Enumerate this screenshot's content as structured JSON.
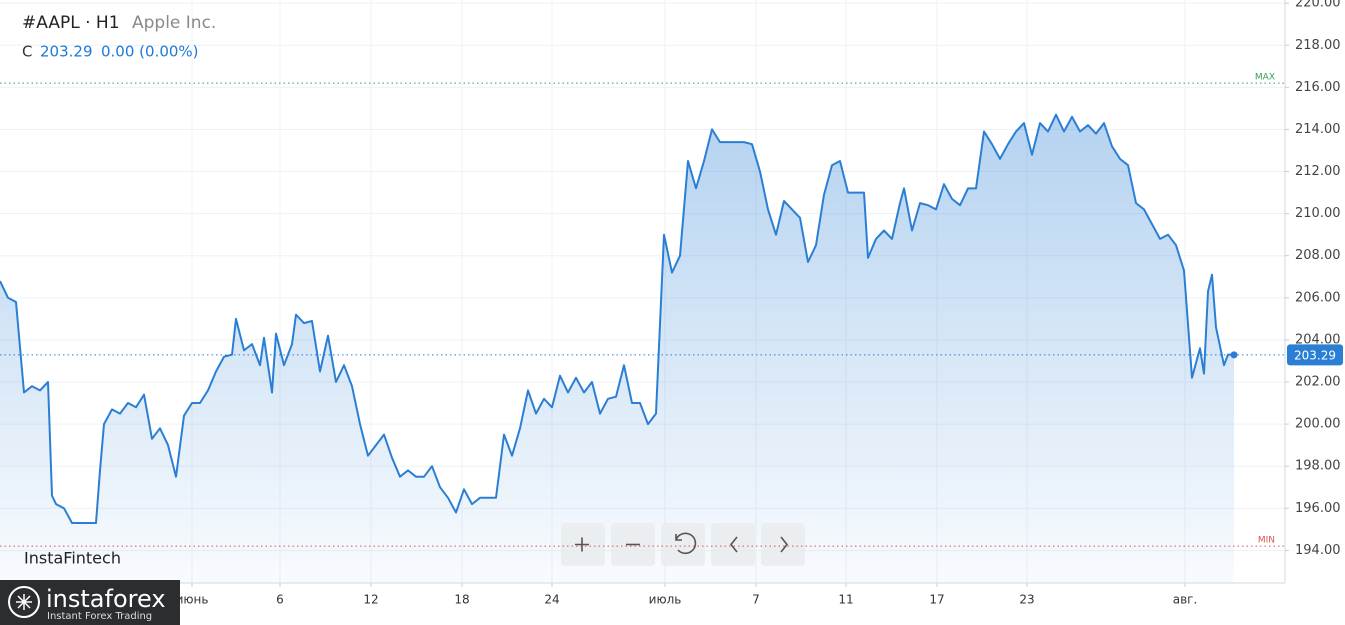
{
  "chart_data": {
    "type": "line",
    "title": "#AAPL · H1",
    "subtitle": "Apple Inc.",
    "price_prefix": "C",
    "close_value": 203.29,
    "change_text": "0.00 (0.00%)",
    "watermark": "InstaFintech",
    "brand": "instaforex",
    "brand_tagline": "Instant Forex Trading",
    "max_line": {
      "value": 216.2,
      "label": "MAX"
    },
    "min_line": {
      "value": 194.2,
      "label": "MIN"
    },
    "last_price": 203.29,
    "grid": true,
    "xlim": [
      0,
      1285
    ],
    "ylim": [
      192.45,
      220.15
    ],
    "yticks": [
      {
        "value": 194,
        "label": "194.00"
      },
      {
        "value": 196,
        "label": "196.00"
      },
      {
        "value": 198,
        "label": "198.00"
      },
      {
        "value": 200,
        "label": "200.00"
      },
      {
        "value": 202,
        "label": "202.00"
      },
      {
        "value": 204,
        "label": "204.00"
      },
      {
        "value": 206,
        "label": "206.00"
      },
      {
        "value": 208,
        "label": "208.00"
      },
      {
        "value": 210,
        "label": "210.00"
      },
      {
        "value": 212,
        "label": "212.00"
      },
      {
        "value": 214,
        "label": "214.00"
      },
      {
        "value": 216,
        "label": "216.00"
      },
      {
        "value": 218,
        "label": "218.00"
      },
      {
        "value": 220,
        "label": "220.00"
      }
    ],
    "xticks": [
      {
        "value": 192,
        "label": "июнь"
      },
      {
        "value": 280,
        "label": "6"
      },
      {
        "value": 371,
        "label": "12"
      },
      {
        "value": 462,
        "label": "18"
      },
      {
        "value": 552,
        "label": "24"
      },
      {
        "value": 665,
        "label": "июль"
      },
      {
        "value": 756,
        "label": "7"
      },
      {
        "value": 846,
        "label": "11"
      },
      {
        "value": 937,
        "label": "17"
      },
      {
        "value": 1027,
        "label": "23"
      },
      {
        "value": 1185,
        "label": "авг."
      }
    ],
    "x": [
      0,
      8,
      16,
      24,
      32,
      40,
      48,
      52,
      56,
      64,
      72,
      80,
      88,
      96,
      100,
      104,
      112,
      120,
      128,
      136,
      144,
      152,
      160,
      168,
      176,
      184,
      192,
      200,
      208,
      216,
      224,
      232,
      236,
      244,
      252,
      260,
      264,
      272,
      276,
      284,
      292,
      296,
      304,
      312,
      320,
      328,
      336,
      344,
      352,
      360,
      368,
      376,
      384,
      392,
      400,
      408,
      416,
      424,
      432,
      440,
      448,
      456,
      464,
      472,
      480,
      488,
      496,
      504,
      512,
      520,
      528,
      536,
      544,
      552,
      560,
      568,
      576,
      584,
      592,
      600,
      608,
      616,
      624,
      632,
      640,
      648,
      656,
      664,
      672,
      680,
      688,
      696,
      704,
      712,
      720,
      728,
      736,
      744,
      752,
      760,
      768,
      776,
      784,
      792,
      800,
      808,
      816,
      824,
      832,
      840,
      848,
      856,
      864,
      868,
      876,
      884,
      892,
      900,
      904,
      912,
      920,
      928,
      936,
      944,
      952,
      960,
      968,
      976,
      984,
      992,
      1000,
      1008,
      1016,
      1024,
      1032,
      1040,
      1048,
      1056,
      1064,
      1072,
      1080,
      1088,
      1096,
      1104,
      1112,
      1120,
      1128,
      1136,
      1144,
      1152,
      1160,
      1168,
      1176,
      1184,
      1192,
      1200,
      1204,
      1208,
      1212,
      1216,
      1224,
      1228,
      1234
    ],
    "series": [
      {
        "name": "AAPL",
        "color": "#2a7fd4",
        "values": [
          206.8,
          206.0,
          205.8,
          201.5,
          201.8,
          201.6,
          202.0,
          196.6,
          196.2,
          196.0,
          195.3,
          195.3,
          195.3,
          195.3,
          197.8,
          200.0,
          200.7,
          200.5,
          201.0,
          200.8,
          201.4,
          199.3,
          199.8,
          199.0,
          197.5,
          200.4,
          201.0,
          201.0,
          201.6,
          202.5,
          203.2,
          203.3,
          205.0,
          203.5,
          203.8,
          202.8,
          204.1,
          201.5,
          204.3,
          202.8,
          203.8,
          205.2,
          204.8,
          204.9,
          202.5,
          204.2,
          202.0,
          202.8,
          201.8,
          200.0,
          198.5,
          199.0,
          199.5,
          198.4,
          197.5,
          197.8,
          197.5,
          197.5,
          198.0,
          197.0,
          196.5,
          195.8,
          196.9,
          196.2,
          196.5,
          196.5,
          196.5,
          199.5,
          198.5,
          199.8,
          201.6,
          200.5,
          201.2,
          200.8,
          202.3,
          201.5,
          202.2,
          201.5,
          202.0,
          200.5,
          201.2,
          201.3,
          202.8,
          201.0,
          201.0,
          200.0,
          200.5,
          209.0,
          207.2,
          208.0,
          212.5,
          211.2,
          212.5,
          214.0,
          213.4,
          213.4,
          213.4,
          213.4,
          213.3,
          212.0,
          210.2,
          209.0,
          210.6,
          210.2,
          209.8,
          207.7,
          208.5,
          210.9,
          212.3,
          212.5,
          211.0,
          211.0,
          211.0,
          207.9,
          208.8,
          209.2,
          208.8,
          210.5,
          211.2,
          209.2,
          210.5,
          210.4,
          210.2,
          211.4,
          210.7,
          210.4,
          211.2,
          211.2,
          213.9,
          213.3,
          212.6,
          213.3,
          213.9,
          214.3,
          212.8,
          214.3,
          213.9,
          214.7,
          213.9,
          214.6,
          213.9,
          214.2,
          213.8,
          214.3,
          213.2,
          212.6,
          212.3,
          210.5,
          210.2,
          209.5,
          208.8,
          209.0,
          208.5,
          207.3,
          202.2,
          203.6,
          202.4,
          206.3,
          207.1,
          204.6,
          202.8,
          203.3,
          203.29
        ]
      }
    ]
  }
}
